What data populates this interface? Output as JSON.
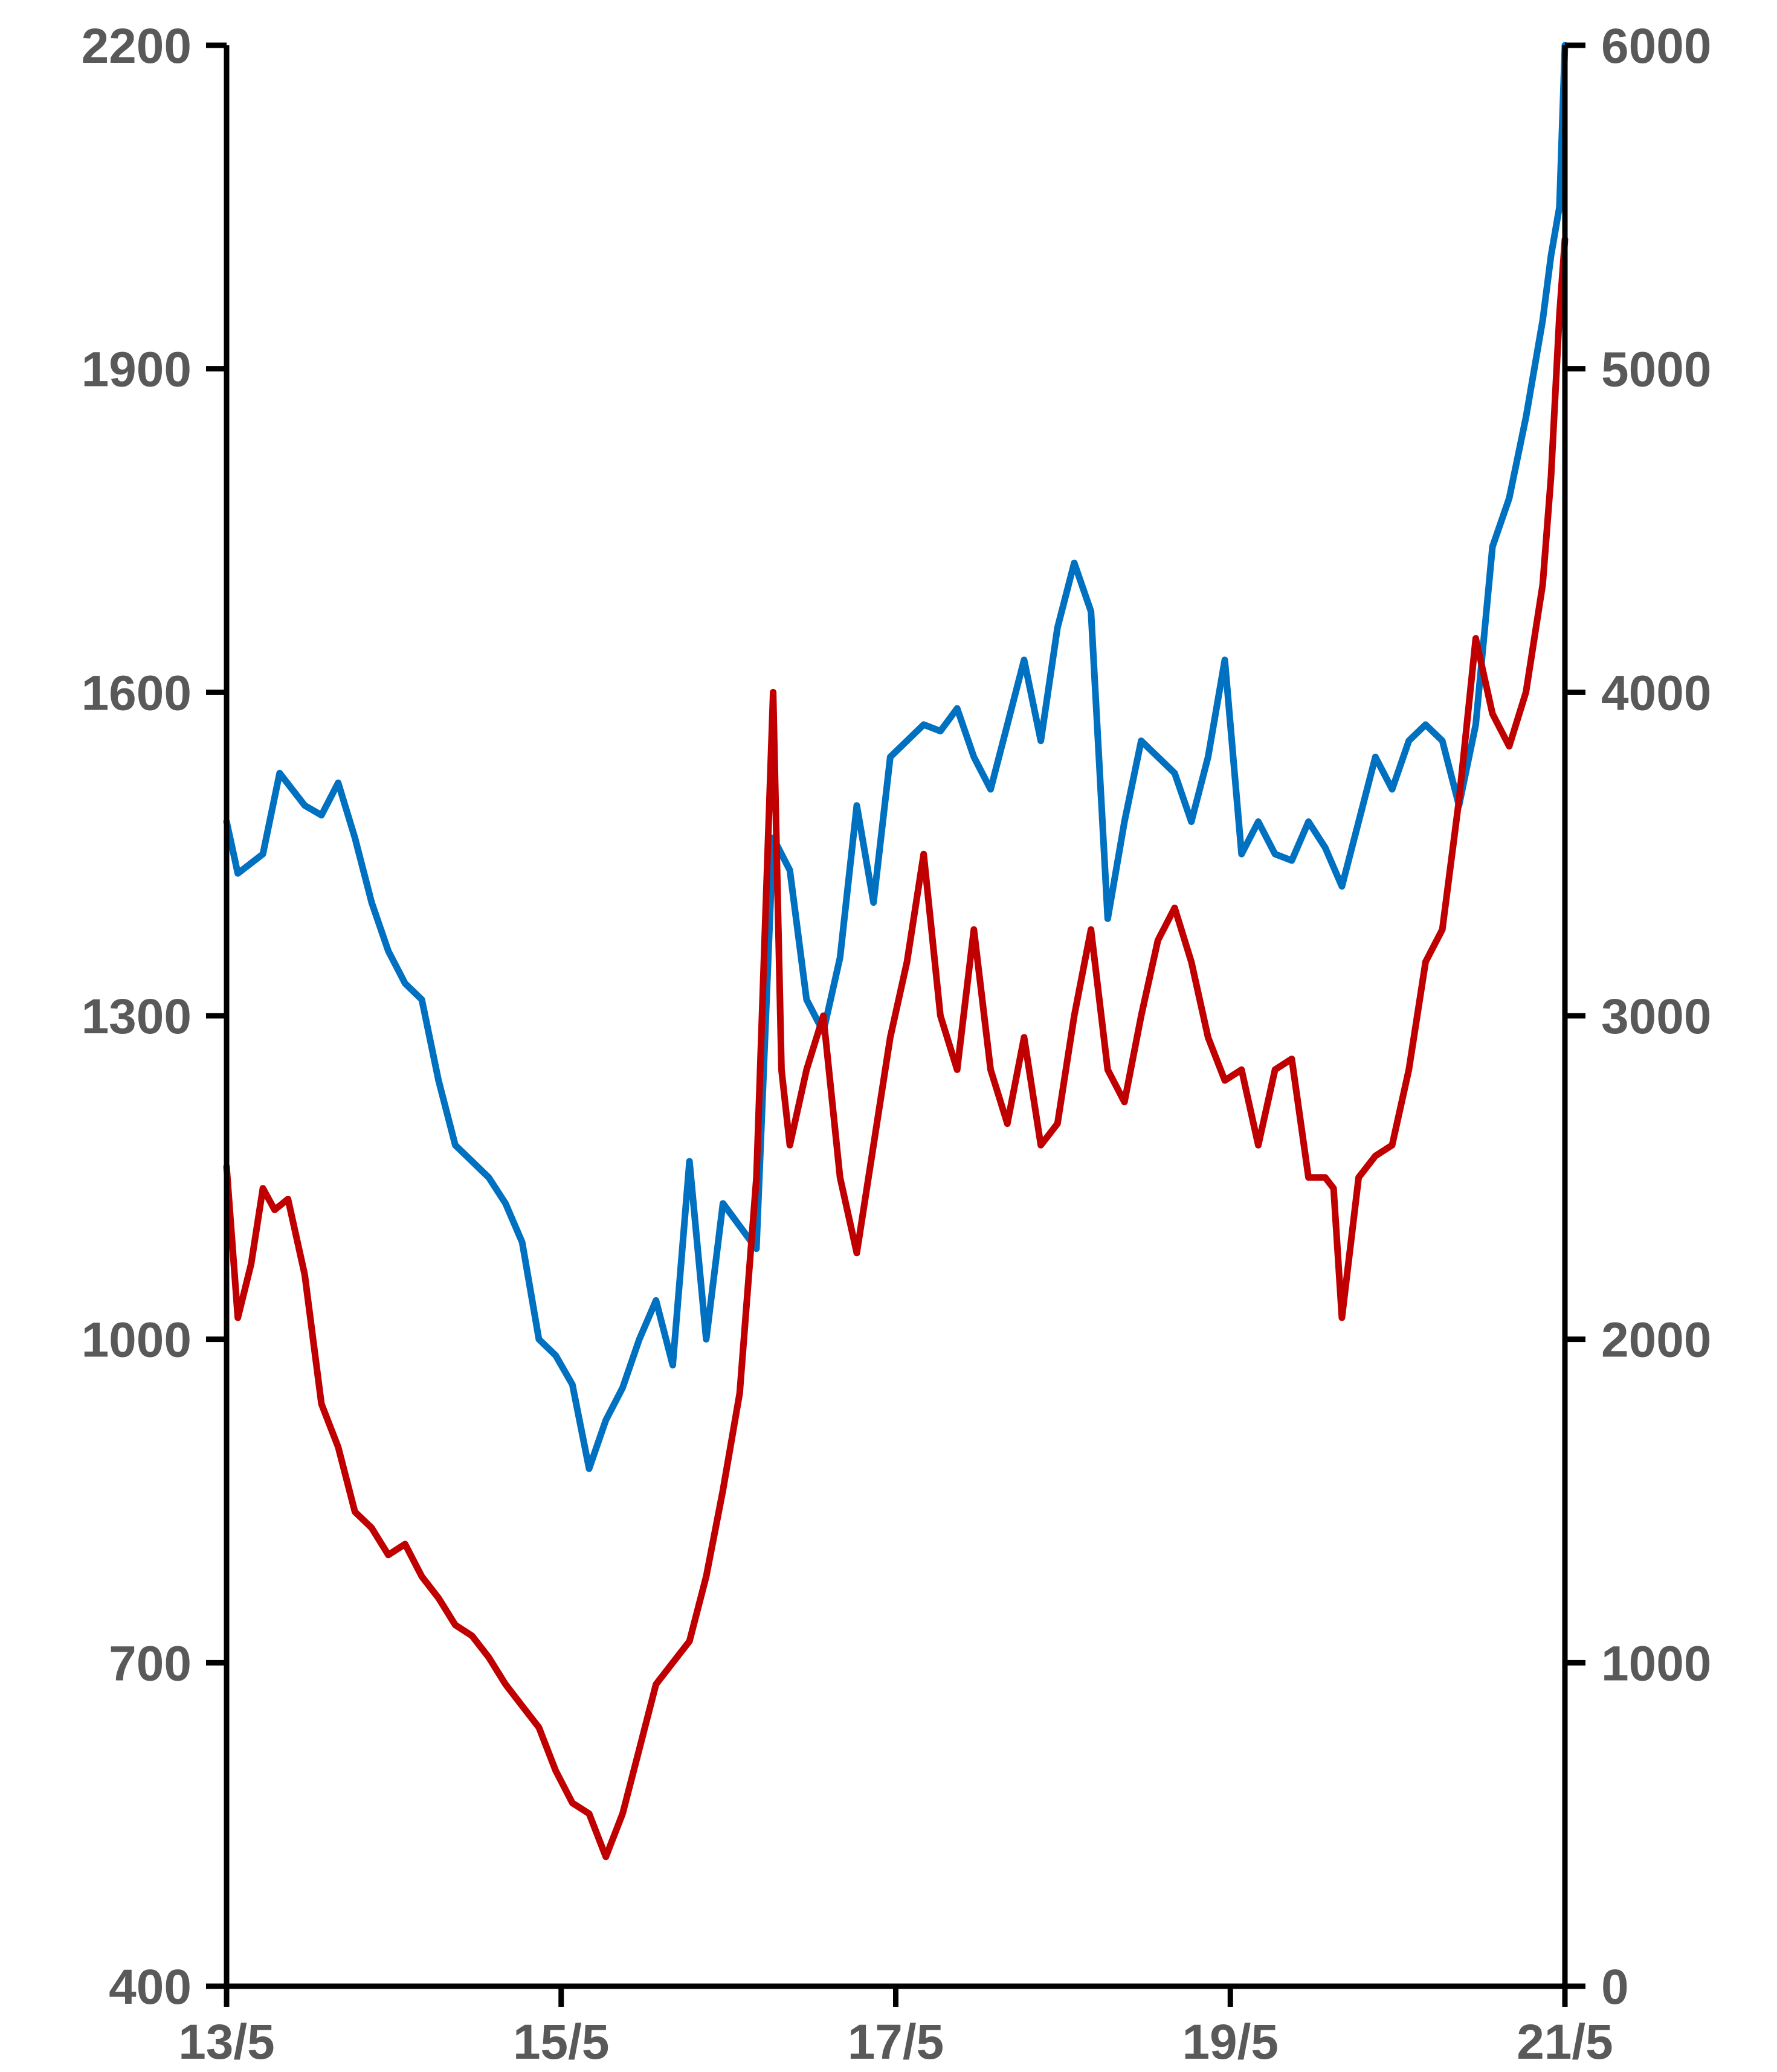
{
  "chart_data": {
    "type": "line",
    "title": "",
    "xlabel": "",
    "ylabel": "",
    "x_ticks": [
      "13/5",
      "15/5",
      "17/5",
      "19/5",
      "21/5"
    ],
    "x_tick_years": [
      2013.333,
      2015.333,
      2017.333,
      2019.333,
      2021.333
    ],
    "xlim": [
      2013.333,
      2021.333
    ],
    "y_left": {
      "lim": [
        400,
        2200
      ],
      "ticks": [
        "400",
        "700",
        "1000",
        "1300",
        "1600",
        "1900",
        "2200"
      ]
    },
    "y_right": {
      "lim": [
        0,
        6000
      ],
      "ticks": [
        "0",
        "1000",
        "2000",
        "3000",
        "4000",
        "5000",
        "6000"
      ]
    },
    "grid": false,
    "legend": "none",
    "series": [
      {
        "axis": "right",
        "color": "#0070C0",
        "x": [
          2013.333,
          2013.4,
          2013.55,
          2013.65,
          2013.8,
          2013.9,
          2014.0,
          2014.1,
          2014.2,
          2014.3,
          2014.4,
          2014.5,
          2014.6,
          2014.7,
          2014.8,
          2014.9,
          2015.0,
          2015.1,
          2015.2,
          2015.3,
          2015.4,
          2015.5,
          2015.6,
          2015.7,
          2015.8,
          2015.9,
          2016.0,
          2016.1,
          2016.2,
          2016.3,
          2016.4,
          2016.5,
          2016.6,
          2016.7,
          2016.8,
          2016.9,
          2017.0,
          2017.1,
          2017.2,
          2017.3,
          2017.4,
          2017.5,
          2017.6,
          2017.7,
          2017.8,
          2017.9,
          2018.0,
          2018.1,
          2018.2,
          2018.3,
          2018.4,
          2018.5,
          2018.6,
          2018.7,
          2018.8,
          2018.9,
          2019.0,
          2019.1,
          2019.2,
          2019.3,
          2019.4,
          2019.5,
          2019.6,
          2019.7,
          2019.8,
          2019.9,
          2020.0,
          2020.1,
          2020.2,
          2020.3,
          2020.4,
          2020.5,
          2020.6,
          2020.7,
          2020.8,
          2020.9,
          2021.0,
          2021.1,
          2021.2,
          2021.25,
          2021.3,
          2021.333
        ],
        "y": [
          3600,
          3440,
          3500,
          3750,
          3650,
          3620,
          3720,
          3550,
          3350,
          3200,
          3100,
          3050,
          2800,
          2600,
          2550,
          2500,
          2420,
          2300,
          2000,
          1950,
          1860,
          1600,
          1750,
          1850,
          2000,
          2120,
          1920,
          2550,
          2000,
          2420,
          2350,
          2280,
          3550,
          3450,
          3050,
          2950,
          3180,
          3650,
          3350,
          3800,
          3850,
          3900,
          3880,
          3950,
          3800,
          3700,
          3900,
          4100,
          3850,
          4200,
          4400,
          4250,
          3300,
          3600,
          3850,
          3800,
          3750,
          3600,
          3800,
          4100,
          3500,
          3600,
          3500,
          3480,
          3600,
          3520,
          3400,
          3600,
          3800,
          3700,
          3850,
          3900,
          3850,
          3650,
          3900,
          4450,
          4600,
          4850,
          5150,
          5350,
          5500,
          6000
        ]
      },
      {
        "axis": "left",
        "color": "#C00000",
        "x": [
          2013.333,
          2013.4,
          2013.48,
          2013.55,
          2013.62,
          2013.7,
          2013.8,
          2013.9,
          2014.0,
          2014.1,
          2014.2,
          2014.3,
          2014.4,
          2014.5,
          2014.6,
          2014.7,
          2014.8,
          2014.9,
          2015.0,
          2015.1,
          2015.2,
          2015.3,
          2015.4,
          2015.5,
          2015.6,
          2015.7,
          2015.8,
          2015.9,
          2016.0,
          2016.1,
          2016.2,
          2016.3,
          2016.4,
          2016.5,
          2016.6,
          2016.65,
          2016.7,
          2016.8,
          2016.9,
          2017.0,
          2017.1,
          2017.2,
          2017.3,
          2017.4,
          2017.5,
          2017.6,
          2017.7,
          2017.8,
          2017.9,
          2018.0,
          2018.1,
          2018.2,
          2018.3,
          2018.4,
          2018.5,
          2018.6,
          2018.7,
          2018.8,
          2018.9,
          2019.0,
          2019.1,
          2019.2,
          2019.3,
          2019.4,
          2019.5,
          2019.6,
          2019.7,
          2019.8,
          2019.9,
          2019.95,
          2020.0,
          2020.1,
          2020.2,
          2020.3,
          2020.4,
          2020.5,
          2020.6,
          2020.7,
          2020.8,
          2020.9,
          2021.0,
          2021.1,
          2021.2,
          2021.25,
          2021.3,
          2021.333
        ],
        "y": [
          1160,
          1020,
          1070,
          1140,
          1120,
          1130,
          1060,
          940,
          900,
          840,
          825,
          800,
          810,
          780,
          760,
          735,
          725,
          705,
          680,
          660,
          640,
          600,
          570,
          560,
          520,
          560,
          620,
          680,
          700,
          720,
          780,
          860,
          950,
          1150,
          1600,
          1250,
          1180,
          1250,
          1300,
          1150,
          1080,
          1180,
          1280,
          1350,
          1450,
          1300,
          1250,
          1380,
          1250,
          1200,
          1280,
          1180,
          1200,
          1300,
          1380,
          1250,
          1220,
          1300,
          1370,
          1400,
          1350,
          1280,
          1240,
          1250,
          1180,
          1250,
          1260,
          1150,
          1150,
          1140,
          1020,
          1150,
          1170,
          1180,
          1250,
          1350,
          1380,
          1500,
          1650,
          1580,
          1550,
          1600,
          1700,
          1800,
          1950,
          2020
        ]
      }
    ]
  }
}
